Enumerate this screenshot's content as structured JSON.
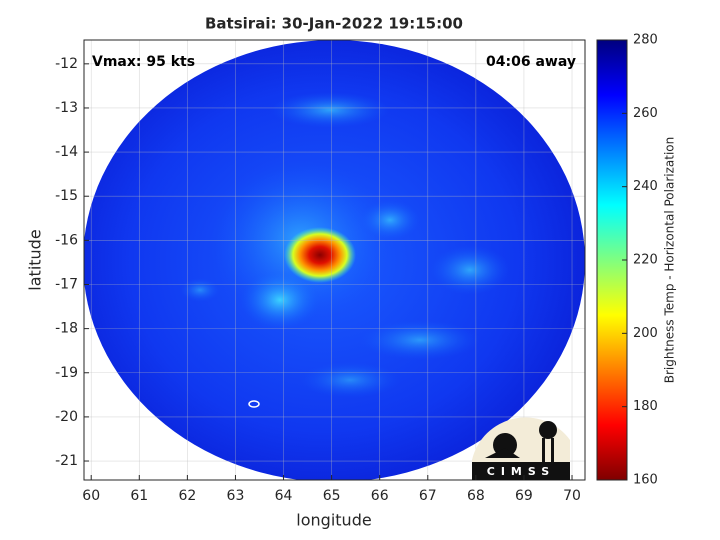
{
  "chart_data": {
    "type": "image",
    "title": "Batsirai: 30-Jan-2022 19:15:00",
    "annotations": [
      "Vmax: 95 kts",
      "04:06 away"
    ],
    "xlabel": "longitude",
    "ylabel": "latitude",
    "xlim": [
      59.85,
      70.27
    ],
    "xticks": [
      60,
      61,
      62,
      63,
      64,
      65,
      66,
      67,
      68,
      69,
      70
    ],
    "ylim": [
      -21.43,
      -11.46
    ],
    "yticks": [
      -21,
      -20,
      -19,
      -18,
      -17,
      -16,
      -15,
      -14,
      -13,
      -12
    ],
    "grid": true,
    "colorbar": {
      "label": "Brightness Temp - Horizontal Polarization",
      "clim": [
        160,
        280
      ],
      "ticks": [
        160,
        180,
        200,
        220,
        240,
        260,
        280
      ],
      "colormap": "jet"
    },
    "logo_text": "CIMSS"
  }
}
